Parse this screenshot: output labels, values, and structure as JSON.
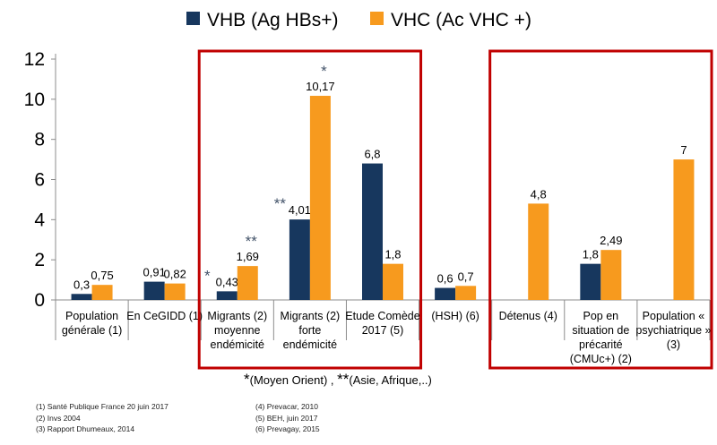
{
  "chart_data": {
    "type": "bar",
    "categories": [
      [
        "Population",
        "générale (1)"
      ],
      [
        "En CeGIDD (1)"
      ],
      [
        "Migrants (2)",
        "moyenne",
        "endémicité"
      ],
      [
        "Migrants (2)",
        "forte",
        "endémicité"
      ],
      [
        "Etude Comède",
        "2017 (5)"
      ],
      [
        "(HSH) (6)"
      ],
      [
        "Détenus (4)"
      ],
      [
        "Pop en",
        "situation de",
        "précarité",
        "(CMUc+) (2)"
      ],
      [
        "Population «",
        "psychiatrique »",
        "(3)"
      ]
    ],
    "series": [
      {
        "name": "VHB (Ag HBs+)",
        "color": "#17375e",
        "values": [
          0.3,
          0.91,
          0.43,
          4.01,
          6.8,
          0.6,
          null,
          1.8,
          null
        ],
        "labels": [
          "0,3",
          "0,91",
          "0,43",
          "4,01",
          "6,8",
          "0,6",
          "",
          "1,8",
          ""
        ]
      },
      {
        "name": "VHC (Ac VHC +)",
        "color": "#f79a1e",
        "values": [
          0.75,
          0.82,
          1.69,
          10.17,
          1.8,
          0.7,
          4.8,
          2.49,
          7
        ],
        "labels": [
          "0,75",
          "0,82",
          "1,69",
          "10,17",
          "1,8",
          "0,7",
          "4,8",
          "2,49",
          "7"
        ]
      }
    ],
    "yticks": [
      "0",
      "2",
      "4",
      "6",
      "8",
      "10",
      "12"
    ],
    "ylim": [
      0,
      12
    ],
    "grid": false,
    "legend_position": "top",
    "annotations": [
      {
        "text": "*",
        "category": 2,
        "series": 0
      },
      {
        "text": "**",
        "category": 2,
        "series": 1
      },
      {
        "text": "**",
        "category": 3,
        "series": 0
      },
      {
        "text": "*",
        "category": 3,
        "series": 1
      }
    ],
    "highlight_groups": [
      [
        2,
        4
      ],
      [
        6,
        8
      ]
    ],
    "highlight_color": "#c00000",
    "footnote": {
      "star1": "*",
      "text1": "(Moyen Orient) , ",
      "star2": "**",
      "text2": "(Asie, Afrique,..)"
    },
    "annotation_color": "#44546a"
  },
  "sources": {
    "left": [
      "(1)    Santé Publique France  20 juin 2017",
      "(2)    Invs 2004",
      "(3)    Rapport Dhumeaux, 2014"
    ],
    "right": [
      "(4)    Prevacar, 2010",
      "(5)    BEH, juin 2017",
      "(6)    Prevagay, 2015"
    ]
  }
}
